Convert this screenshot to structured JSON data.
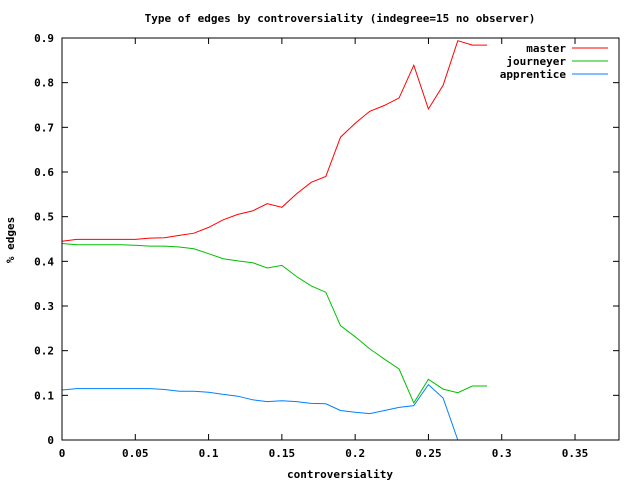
{
  "chart_data": {
    "type": "line",
    "title": "Type of edges by controversiality (indegree=15 no observer)",
    "xlabel": "controversiality",
    "ylabel": "% edges",
    "xlim": [
      0,
      0.38
    ],
    "ylim": [
      0,
      0.9
    ],
    "xticks": [
      {
        "value": 0,
        "label": "0"
      },
      {
        "value": 0.05,
        "label": "0.05"
      },
      {
        "value": 0.1,
        "label": "0.1"
      },
      {
        "value": 0.15,
        "label": "0.15"
      },
      {
        "value": 0.2,
        "label": "0.2"
      },
      {
        "value": 0.25,
        "label": "0.25"
      },
      {
        "value": 0.3,
        "label": "0.3"
      },
      {
        "value": 0.35,
        "label": "0.35"
      }
    ],
    "yticks": [
      {
        "value": 0,
        "label": "0"
      },
      {
        "value": 0.1,
        "label": "0.1"
      },
      {
        "value": 0.2,
        "label": "0.2"
      },
      {
        "value": 0.3,
        "label": "0.3"
      },
      {
        "value": 0.4,
        "label": "0.4"
      },
      {
        "value": 0.5,
        "label": "0.5"
      },
      {
        "value": 0.6,
        "label": "0.6"
      },
      {
        "value": 0.7,
        "label": "0.7"
      },
      {
        "value": 0.8,
        "label": "0.8"
      },
      {
        "value": 0.9,
        "label": "0.9"
      }
    ],
    "grid": false,
    "legend_position": "top-right",
    "series": [
      {
        "name": "master",
        "color": "#ff0000",
        "x": [
          0,
          0.01,
          0.02,
          0.03,
          0.04,
          0.05,
          0.06,
          0.07,
          0.08,
          0.09,
          0.1,
          0.11,
          0.12,
          0.13,
          0.14,
          0.15,
          0.16,
          0.17,
          0.18,
          0.19,
          0.2,
          0.21,
          0.22,
          0.23,
          0.24,
          0.25,
          0.26,
          0.27,
          0.28,
          0.29
        ],
        "y": [
          0.445,
          0.449,
          0.449,
          0.449,
          0.449,
          0.449,
          0.452,
          0.453,
          0.458,
          0.463,
          0.476,
          0.493,
          0.505,
          0.513,
          0.529,
          0.521,
          0.551,
          0.577,
          0.59,
          0.678,
          0.709,
          0.736,
          0.749,
          0.766,
          0.839,
          0.741,
          0.794,
          0.894,
          0.884,
          0.884
        ]
      },
      {
        "name": "journeyer",
        "color": "#00c000",
        "x": [
          0,
          0.01,
          0.02,
          0.03,
          0.04,
          0.05,
          0.06,
          0.07,
          0.08,
          0.09,
          0.1,
          0.11,
          0.12,
          0.13,
          0.14,
          0.15,
          0.16,
          0.17,
          0.18,
          0.19,
          0.2,
          0.21,
          0.22,
          0.23,
          0.24,
          0.25,
          0.26,
          0.27,
          0.28,
          0.29
        ],
        "y": [
          0.44,
          0.437,
          0.437,
          0.437,
          0.437,
          0.436,
          0.434,
          0.434,
          0.432,
          0.428,
          0.417,
          0.406,
          0.401,
          0.397,
          0.385,
          0.391,
          0.366,
          0.345,
          0.331,
          0.256,
          0.231,
          0.204,
          0.181,
          0.159,
          0.083,
          0.136,
          0.114,
          0.106,
          0.121,
          0.121
        ]
      },
      {
        "name": "apprentice",
        "color": "#0080ff",
        "x": [
          0,
          0.01,
          0.02,
          0.03,
          0.04,
          0.05,
          0.06,
          0.07,
          0.08,
          0.09,
          0.1,
          0.11,
          0.12,
          0.13,
          0.14,
          0.15,
          0.16,
          0.17,
          0.18,
          0.19,
          0.2,
          0.21,
          0.22,
          0.23,
          0.24,
          0.25,
          0.26,
          0.27
        ],
        "y": [
          0.112,
          0.115,
          0.115,
          0.115,
          0.115,
          0.115,
          0.115,
          0.113,
          0.109,
          0.109,
          0.107,
          0.102,
          0.098,
          0.09,
          0.086,
          0.088,
          0.086,
          0.082,
          0.081,
          0.066,
          0.062,
          0.059,
          0.066,
          0.073,
          0.077,
          0.124,
          0.094,
          0.0
        ]
      }
    ]
  }
}
